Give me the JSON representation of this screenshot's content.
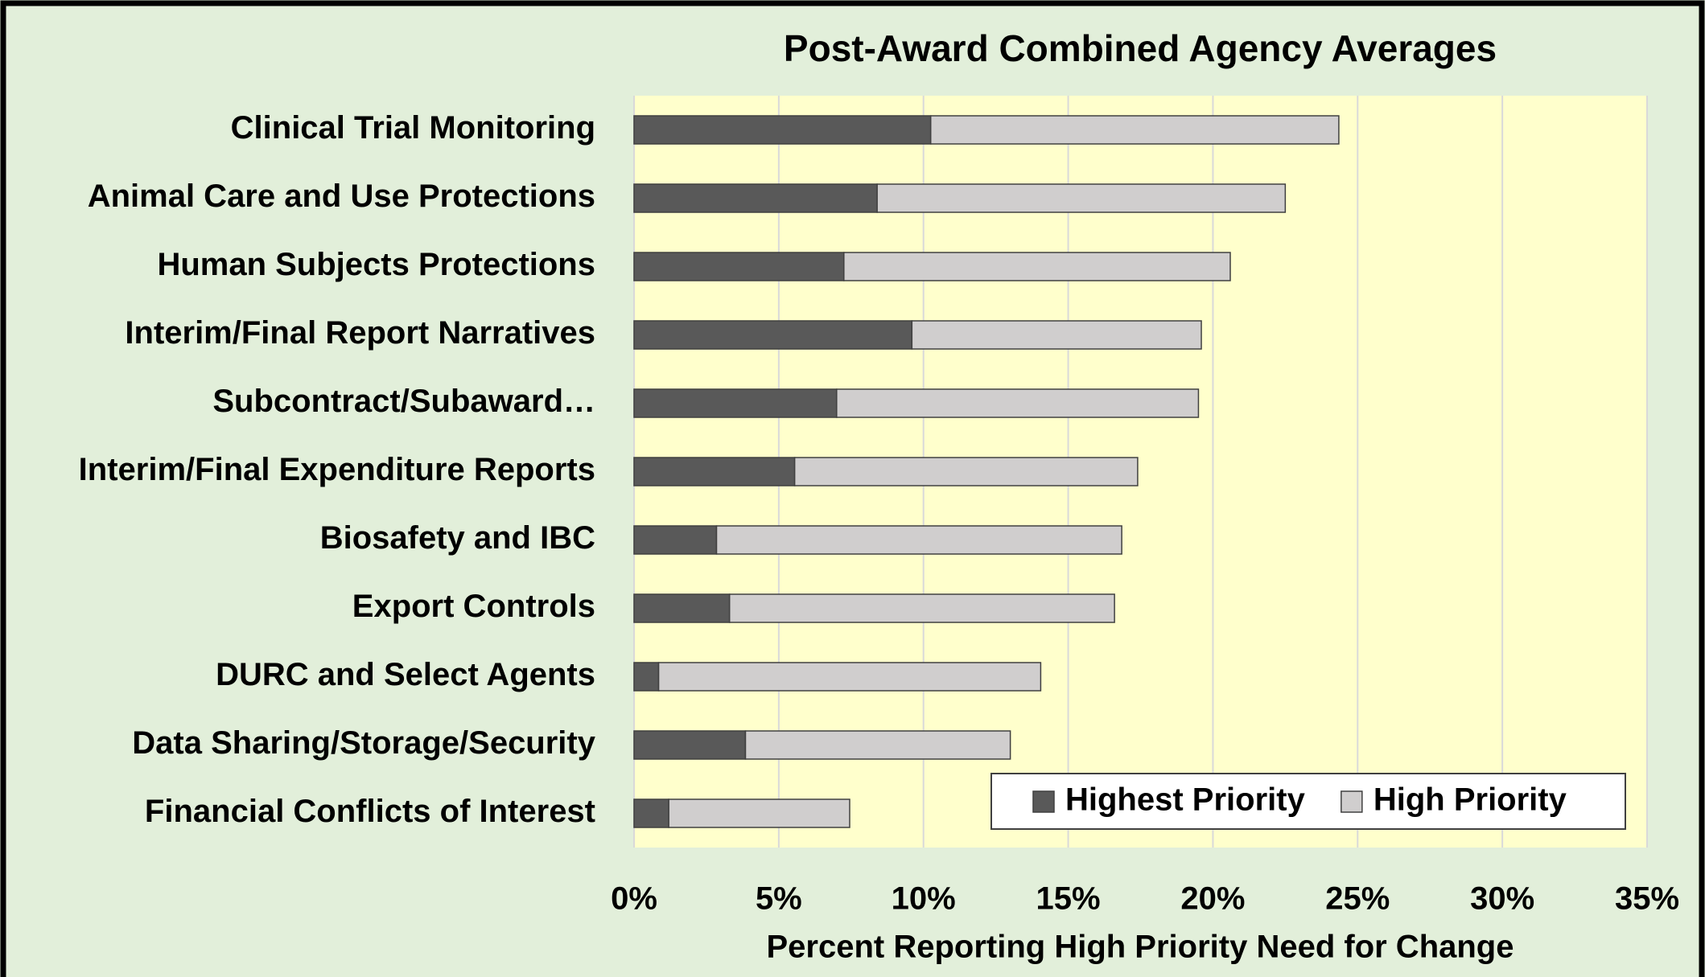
{
  "chart_data": {
    "type": "stacked-barh",
    "title": "Post-Award Combined Agency Averages",
    "x_axis_label": "Percent Reporting High Priority Need for Change",
    "categories": [
      "Clinical Trial Monitoring",
      "Animal Care and Use Protections",
      "Human Subjects Protections",
      "Interim/Final Report Narratives",
      "Subcontract/Subaward…",
      "Interim/Final Expenditure Reports",
      "Biosafety and IBC",
      "Export Controls",
      "DURC and Select Agents",
      "Data Sharing/Storage/Security",
      "Financial Conflicts of Interest"
    ],
    "series": [
      {
        "name": "Highest Priority",
        "color": "#595959",
        "values": [
          10.25,
          8.4,
          7.25,
          9.6,
          7.0,
          5.55,
          2.85,
          3.3,
          0.85,
          3.85,
          1.2
        ]
      },
      {
        "name": "High Priority",
        "color": "#d0cece",
        "values": [
          14.1,
          14.1,
          13.35,
          10.0,
          12.5,
          11.85,
          14.0,
          13.3,
          13.2,
          9.15,
          6.25
        ]
      }
    ],
    "xlim": [
      0,
      35
    ],
    "xticks": [
      {
        "value": 0,
        "label": "0%"
      },
      {
        "value": 5,
        "label": "5%"
      },
      {
        "value": 10,
        "label": "10%"
      },
      {
        "value": 15,
        "label": "15%"
      },
      {
        "value": 20,
        "label": "20%"
      },
      {
        "value": 25,
        "label": "25%"
      },
      {
        "value": 30,
        "label": "30%"
      },
      {
        "value": 35,
        "label": "35%"
      }
    ],
    "grid": true,
    "legend": "lower right"
  }
}
